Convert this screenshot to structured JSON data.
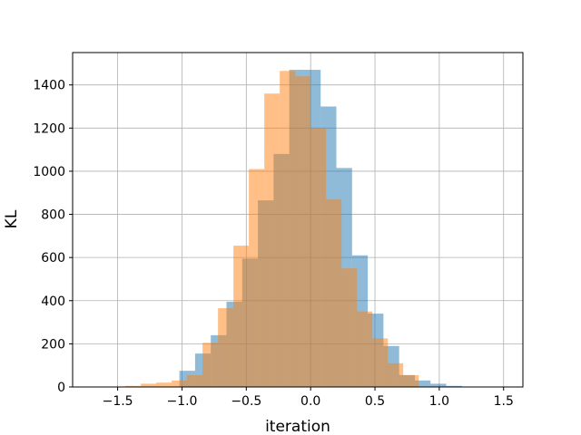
{
  "chart_data": {
    "type": "bar",
    "title": "",
    "xlabel": "iteration",
    "ylabel": "KL",
    "xlim": [
      -1.85,
      1.65
    ],
    "ylim": [
      0,
      1550
    ],
    "grid": true,
    "xticks": [
      -1.5,
      -1.0,
      -0.5,
      0.0,
      0.5,
      1.0,
      1.5
    ],
    "xtick_labels": [
      "−1.5",
      "−1.0",
      "−0.5",
      "0.0",
      "0.5",
      "1.0",
      "1.5"
    ],
    "yticks": [
      0,
      200,
      400,
      600,
      800,
      1000,
      1200,
      1400
    ],
    "ytick_labels": [
      "0",
      "200",
      "400",
      "600",
      "800",
      "1000",
      "1200",
      "1400"
    ],
    "series": [
      {
        "color": "#1f77b4",
        "opacity": 0.5,
        "bin_edges": [
          -1.02,
          -0.898,
          -0.776,
          -0.654,
          -0.532,
          -0.41,
          -0.288,
          -0.166,
          -0.044,
          0.078,
          0.2,
          0.322,
          0.444,
          0.566,
          0.688,
          0.81,
          0.932,
          1.054,
          1.176
        ],
        "counts": [
          75,
          155,
          240,
          395,
          595,
          865,
          1080,
          1470,
          1470,
          1300,
          1015,
          610,
          340,
          190,
          55,
          30,
          15,
          5
        ]
      },
      {
        "color": "#ff7f0e",
        "opacity": 0.5,
        "bin_edges": [
          -1.44,
          -1.32,
          -1.2,
          -1.08,
          -0.96,
          -0.84,
          -0.72,
          -0.6,
          -0.48,
          -0.36,
          -0.24,
          -0.12,
          0.0,
          0.12,
          0.24,
          0.36,
          0.48,
          0.6,
          0.72,
          0.84
        ],
        "counts": [
          5,
          15,
          20,
          30,
          55,
          205,
          365,
          655,
          1010,
          1360,
          1465,
          1440,
          1200,
          870,
          550,
          350,
          225,
          110,
          55
        ]
      }
    ]
  }
}
